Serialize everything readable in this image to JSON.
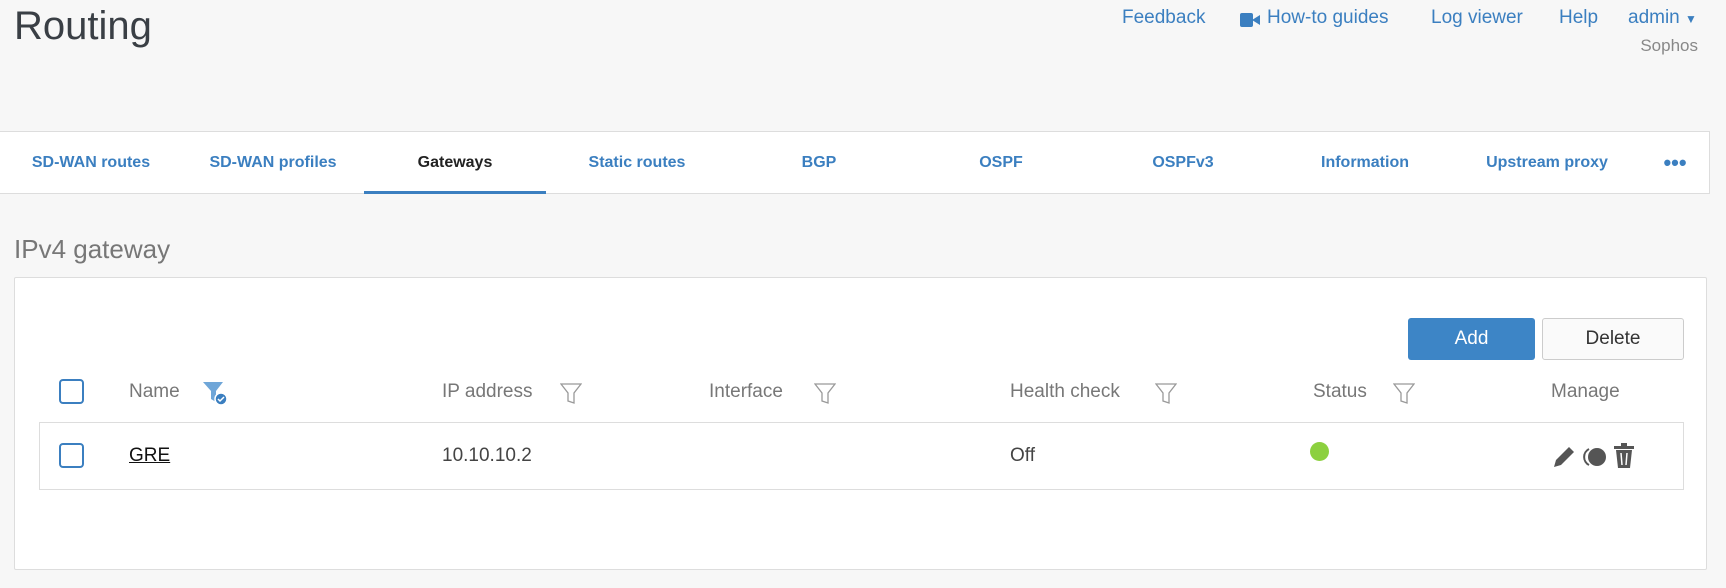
{
  "page_title": "Routing",
  "header": {
    "links": [
      "Feedback",
      "How-to guides",
      "Log viewer",
      "Help",
      "admin"
    ],
    "org": "Sophos"
  },
  "tabs": [
    "SD-WAN routes",
    "SD-WAN profiles",
    "Gateways",
    "Static routes",
    "BGP",
    "OSPF",
    "OSPFv3",
    "Information",
    "Upstream proxy"
  ],
  "active_tab": "Gateways",
  "section_title": "IPv4 gateway",
  "buttons": {
    "add": "Add",
    "delete": "Delete"
  },
  "table": {
    "columns": [
      "Name",
      "IP address",
      "Interface",
      "Health check",
      "Status",
      "Manage"
    ],
    "rows": [
      {
        "name": "GRE",
        "ip": "10.10.10.2",
        "interface": "",
        "health_check": "Off",
        "status": "active"
      }
    ]
  },
  "colors": {
    "accent": "#3b7fc0",
    "status_ok": "#8cd03f"
  }
}
